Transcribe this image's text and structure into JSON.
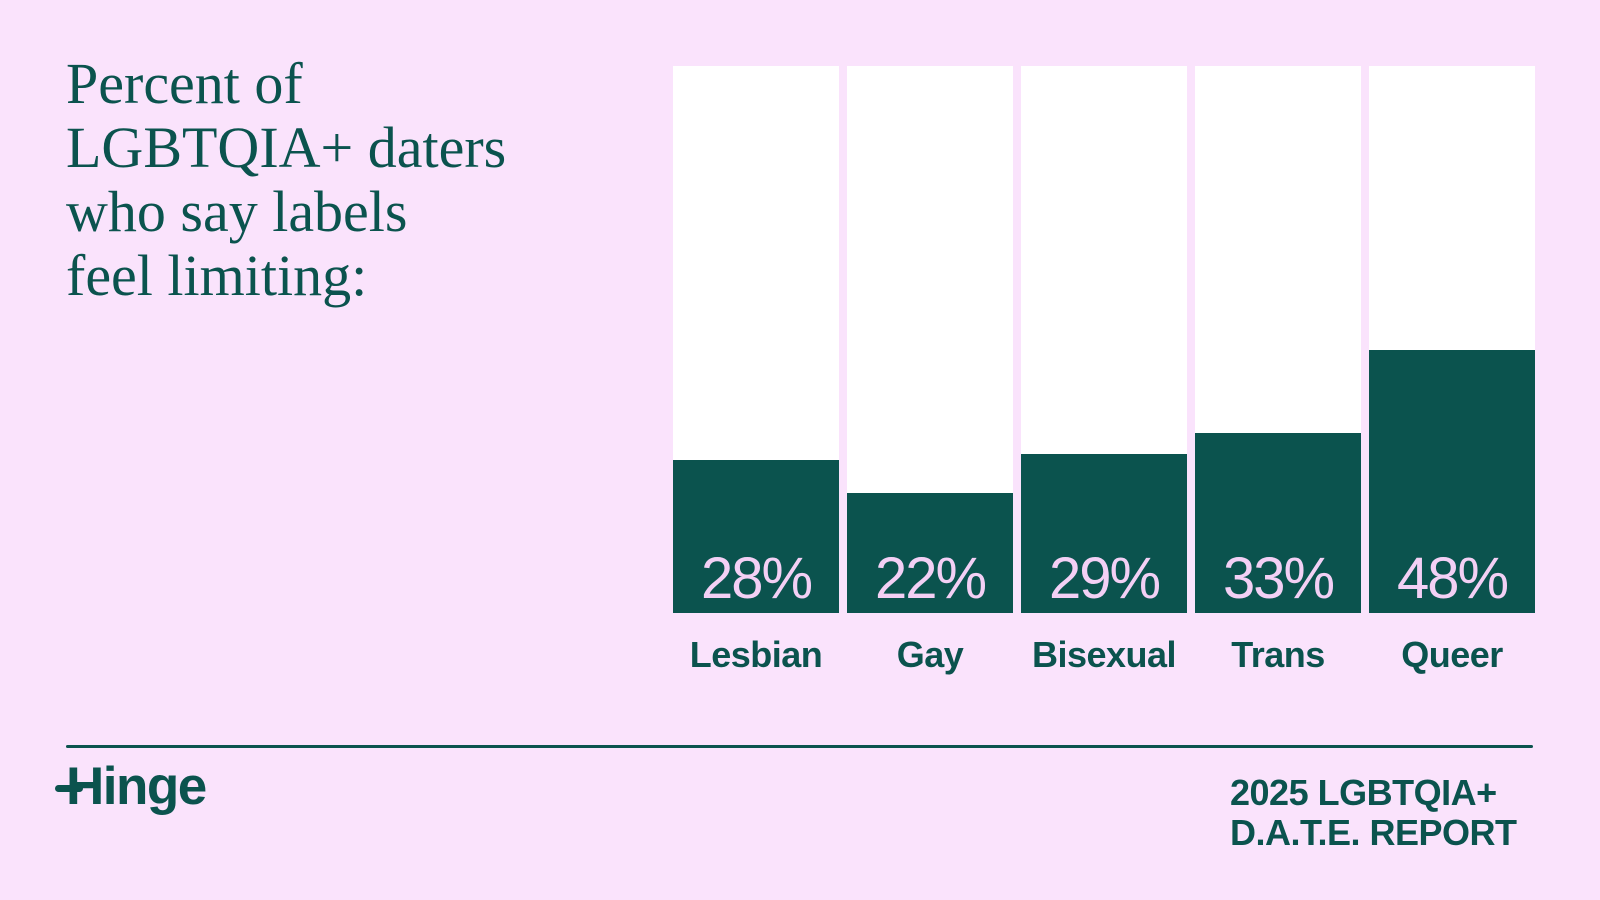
{
  "header": {
    "title_lines": [
      "Percent of",
      "LGBTQIA+ daters",
      "who say labels",
      "feel limiting:"
    ]
  },
  "chart_data": {
    "type": "bar",
    "title": "Percent of LGBTQIA+ daters who say labels feel limiting:",
    "categories": [
      "Lesbian",
      "Gay",
      "Bisexual",
      "Trans",
      "Queer"
    ],
    "values": [
      28,
      22,
      29,
      33,
      48
    ],
    "value_labels": [
      "28%",
      "22%",
      "29%",
      "33%",
      "48%"
    ],
    "unit": "%",
    "xlabel": "",
    "ylabel": "",
    "ylim": [
      0,
      100
    ],
    "orientation": "vertical",
    "grid": "off",
    "legend": "none",
    "bar_style": "teal fill inside full-height white track, value label inside fill bottom, category label below"
  },
  "footer": {
    "brand": "Hinge",
    "report_lines": [
      "2025 LGBTQIA+",
      "D.A.T.E. REPORT"
    ]
  },
  "colors": {
    "bg": "#FAE3FC",
    "teal": "#0B534E",
    "track": "#FFFFFF",
    "pct": "#F3D0F5"
  }
}
